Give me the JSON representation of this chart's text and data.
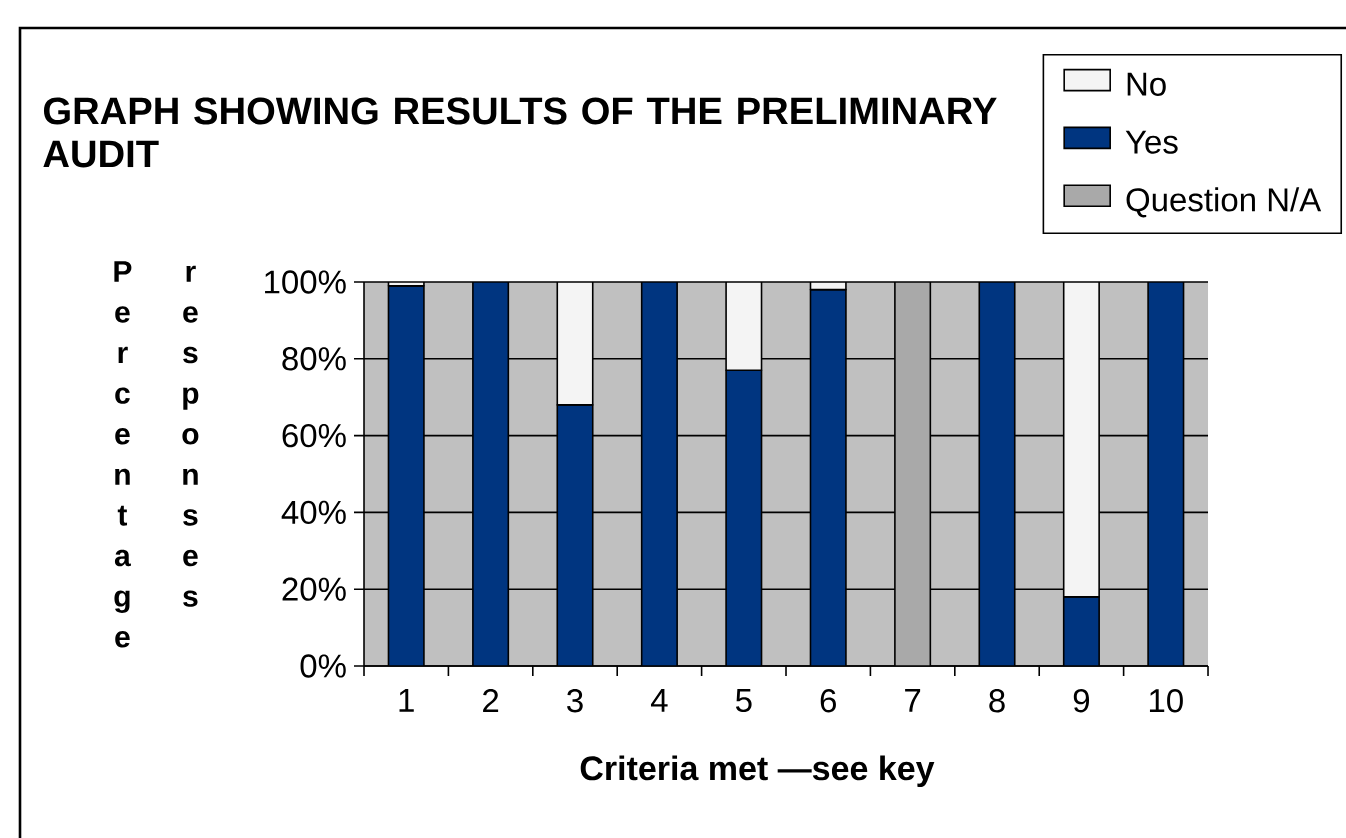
{
  "chart_data": {
    "type": "bar",
    "title": "GRAPH SHOWING RESULTS OF THE PRELIMINARY AUDIT",
    "xlabel": "Criteria met —see key",
    "ylabel": "Percentage responses",
    "categories": [
      "1",
      "2",
      "3",
      "4",
      "5",
      "6",
      "7",
      "8",
      "9",
      "10"
    ],
    "series": [
      {
        "name": "Yes",
        "color": "#003580",
        "values": [
          99,
          100,
          68,
          100,
          77,
          98,
          null,
          100,
          18,
          100
        ]
      },
      {
        "name": "No",
        "color": "#f4f4f4",
        "values": [
          1,
          null,
          32,
          null,
          23,
          2,
          null,
          null,
          82,
          null
        ]
      },
      {
        "name": "Question N/A",
        "color": "#a9a9a9",
        "values": [
          null,
          null,
          null,
          null,
          null,
          null,
          100,
          null,
          null,
          null
        ]
      }
    ],
    "stacked": true,
    "ylim": [
      0,
      100
    ],
    "yticks": [
      {
        "value": 0,
        "label": "0%"
      },
      {
        "value": 20,
        "label": "20%"
      },
      {
        "value": 40,
        "label": "40%"
      },
      {
        "value": 60,
        "label": "60%"
      },
      {
        "value": 80,
        "label": "80%"
      },
      {
        "value": 100,
        "label": "100%"
      }
    ],
    "grid": "y",
    "legend": "top right"
  }
}
